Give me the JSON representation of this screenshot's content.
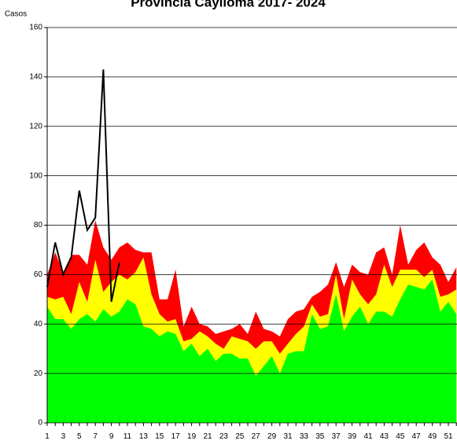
{
  "chart_data": {
    "type": "area",
    "title": "Provincia Caylloma 2017- 2024",
    "y_label": "Casos",
    "categories": [
      1,
      null,
      3,
      null,
      5,
      null,
      7,
      null,
      9,
      null,
      11,
      null,
      13,
      null,
      15,
      null,
      17,
      null,
      19,
      null,
      21,
      null,
      23,
      null,
      25,
      null,
      27,
      null,
      29,
      null,
      31,
      null,
      33,
      null,
      35,
      null,
      37,
      null,
      39,
      null,
      41,
      null,
      43,
      null,
      45,
      null,
      47,
      null,
      49,
      null,
      51,
      null
    ],
    "ylim": [
      0,
      160
    ],
    "yticks": [
      0,
      20,
      40,
      60,
      80,
      100,
      120,
      140,
      160
    ],
    "grid": true,
    "series": [
      {
        "color": "#ff0000",
        "values": [
          60,
          69,
          61,
          68,
          68,
          64,
          82,
          71,
          66,
          71,
          73,
          70,
          69,
          69,
          50,
          50,
          62,
          39,
          47,
          40,
          39,
          36,
          37,
          38,
          40,
          36,
          45,
          38,
          37,
          35,
          42,
          45,
          46,
          51,
          53,
          56,
          65,
          55,
          64,
          61,
          60,
          69,
          71,
          60,
          80,
          64,
          70,
          73,
          67,
          64,
          57,
          63
        ]
      },
      {
        "color": "#ffff00",
        "values": [
          51,
          50,
          51,
          44,
          57,
          49,
          66,
          53,
          57,
          60,
          58,
          61,
          67,
          52,
          44,
          41,
          42,
          33,
          34,
          37,
          35,
          32,
          30,
          35,
          34,
          33,
          30,
          33,
          33,
          28,
          32,
          36,
          39,
          48,
          43,
          44,
          60,
          42,
          58,
          52,
          48,
          52,
          64,
          55,
          62,
          62,
          62,
          59,
          62,
          51,
          52,
          54
        ]
      },
      {
        "color": "#00ff00",
        "values": [
          47,
          42,
          42,
          38,
          42,
          44,
          41,
          46,
          43,
          45,
          50,
          48,
          39,
          38,
          35,
          37,
          36,
          29,
          32,
          27,
          30,
          25,
          28,
          28,
          26,
          26,
          19,
          23,
          27,
          20,
          28,
          29,
          29,
          44,
          38,
          39,
          52,
          37,
          43,
          47,
          40,
          45,
          45,
          43,
          50,
          56,
          55,
          54,
          58,
          45,
          49,
          44
        ]
      },
      {
        "color": "#000000",
        "type": "line",
        "values": [
          55,
          73,
          60,
          67,
          94,
          78,
          83,
          143,
          49,
          65,
          null,
          null,
          null,
          null,
          null,
          null,
          null,
          null,
          null,
          null,
          null,
          null,
          null,
          null,
          null,
          null,
          null,
          null,
          null,
          null,
          null,
          null,
          null,
          null,
          null,
          null,
          null,
          null,
          null,
          null,
          null,
          null,
          null,
          null,
          null,
          null,
          null,
          null,
          null,
          null,
          null,
          null
        ]
      }
    ]
  }
}
